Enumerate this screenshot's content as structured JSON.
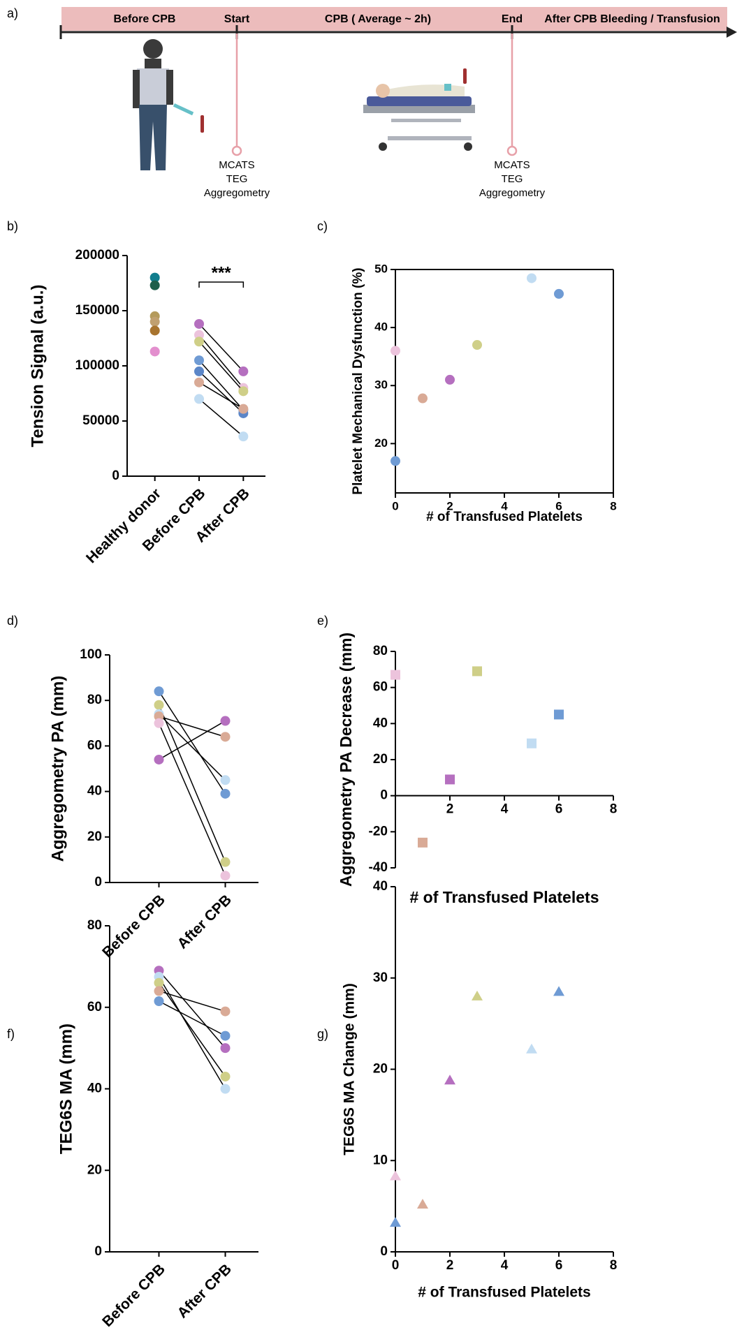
{
  "timeline": {
    "label": "a)",
    "segments": [
      "Before CPB",
      "CPB ( Average ~ 2h)",
      "After CPB Bleeding / Transfusion"
    ],
    "markers": [
      {
        "label": "Start",
        "measures": [
          "MCATS",
          "TEG",
          "Aggregometry"
        ]
      },
      {
        "label": "End",
        "measures": [
          "MCATS",
          "TEG",
          "Aggregometry"
        ]
      }
    ]
  },
  "chart_data": [
    {
      "type": "line",
      "label": "b)",
      "y_label": "Tension Signal (a.u.)",
      "annotation": "***",
      "categories": [
        "Healthy donor",
        "Before CPB",
        "After CPB"
      ],
      "ylim": [
        0,
        200000
      ],
      "yticks": [
        0,
        50000,
        100000,
        150000,
        200000
      ],
      "marker": "circle",
      "series": [
        {
          "color": "#117d8d",
          "values": [
            180000,
            null,
            null
          ]
        },
        {
          "color": "#1e5e4a",
          "values": [
            173000,
            null,
            null
          ]
        },
        {
          "color": "#b49a5b",
          "values": [
            145000,
            null,
            null
          ]
        },
        {
          "color": "#c0a070",
          "values": [
            140000,
            null,
            null
          ]
        },
        {
          "color": "#a8742e",
          "values": [
            132000,
            null,
            null
          ]
        },
        {
          "color": "#e38fce",
          "values": [
            113000,
            null,
            null
          ]
        },
        {
          "color": "#b56fbf",
          "values": [
            null,
            138000,
            95000
          ]
        },
        {
          "color": "#ecc3dc",
          "values": [
            null,
            128000,
            80000
          ]
        },
        {
          "color": "#cfcf88",
          "values": [
            null,
            122000,
            77000
          ]
        },
        {
          "color": "#6f9bd4",
          "values": [
            null,
            105000,
            60000
          ]
        },
        {
          "color": "#5b86c8",
          "values": [
            null,
            95000,
            57000
          ]
        },
        {
          "color": "#d9aa96",
          "values": [
            null,
            85000,
            61000
          ]
        },
        {
          "color": "#c1dcf2",
          "values": [
            null,
            70000,
            36000
          ]
        }
      ]
    },
    {
      "type": "scatter",
      "label": "c)",
      "y_label": "Platelet Mechanical Dysfunction (%)",
      "x_label": "# of Transfused Platelets",
      "x": [
        0,
        0,
        1,
        2,
        3,
        5,
        6
      ],
      "values": [
        36,
        17,
        27.8,
        31,
        37,
        48.5,
        45.8
      ],
      "colors": [
        "#ecc3dc",
        "#6f9bd4",
        "#d9aa96",
        "#b56fbf",
        "#cfcf88",
        "#c1dcf2",
        "#6f9bd4"
      ],
      "marker": "circle",
      "frame": true,
      "xlim": [
        0,
        8
      ],
      "xticks": [
        0,
        2,
        4,
        6,
        8
      ],
      "ylim": [
        11.5,
        50
      ],
      "yticks": [
        20,
        30,
        40,
        50
      ]
    },
    {
      "type": "line",
      "label": "d)",
      "y_label": "Aggregometry PA (mm)",
      "categories": [
        "Before CPB",
        "After CPB"
      ],
      "ylim": [
        0,
        100
      ],
      "yticks": [
        0,
        20,
        40,
        60,
        80,
        100
      ],
      "marker": "circle",
      "series": [
        {
          "color": "#6f9bd4",
          "values": [
            84,
            39
          ]
        },
        {
          "color": "#cfcf88",
          "values": [
            78,
            9
          ]
        },
        {
          "color": "#c1dcf2",
          "values": [
            74,
            45
          ]
        },
        {
          "color": "#d9aa96",
          "values": [
            73,
            64
          ]
        },
        {
          "color": "#ecc3dc",
          "values": [
            70,
            3
          ]
        },
        {
          "color": "#b56fbf",
          "values": [
            54,
            71
          ]
        }
      ]
    },
    {
      "type": "scatter",
      "label": "e)",
      "y_label": "Aggregometry PA Decrease (mm)",
      "x_label": "# of Transfused Platelets",
      "x": [
        0,
        1,
        2,
        3,
        5,
        6
      ],
      "values": [
        67,
        -26,
        9,
        69,
        29,
        45
      ],
      "colors": [
        "#ecc3dc",
        "#d9aa96",
        "#b56fbf",
        "#cfcf88",
        "#c1dcf2",
        "#6f9bd4"
      ],
      "marker": "square",
      "xlim": [
        0,
        8
      ],
      "xticks": [
        2,
        4,
        6,
        8
      ],
      "ylim": [
        -40,
        80
      ],
      "yticks": [
        -40,
        -20,
        0,
        20,
        40,
        60,
        80
      ]
    },
    {
      "type": "line",
      "label": "f)",
      "y_label": "TEG6S MA (mm)",
      "categories": [
        "Before CPB",
        "After CPB"
      ],
      "ylim": [
        0,
        80
      ],
      "yticks": [
        0,
        20,
        40,
        60,
        80
      ],
      "marker": "circle",
      "series": [
        {
          "color": "#b56fbf",
          "values": [
            69,
            50
          ]
        },
        {
          "color": "#c1dcf2",
          "values": [
            67.5,
            40
          ]
        },
        {
          "color": "#cfcf88",
          "values": [
            66,
            43
          ]
        },
        {
          "color": "#d9aa96",
          "values": [
            64,
            59
          ]
        },
        {
          "color": "#6f9bd4",
          "values": [
            61.5,
            53
          ]
        }
      ]
    },
    {
      "type": "scatter",
      "label": "g)",
      "y_label": "TEG6S MA Change (mm)",
      "x_label": "# of Transfused Platelets",
      "x": [
        0,
        0,
        1,
        2,
        3,
        5,
        6
      ],
      "values": [
        8.3,
        3.2,
        5.2,
        18.8,
        28,
        22.2,
        28.5
      ],
      "colors": [
        "#ecc3dc",
        "#6f9bd4",
        "#d9aa96",
        "#b56fbf",
        "#cfcf88",
        "#c1dcf2",
        "#6f9bd4"
      ],
      "marker": "triangle",
      "xlim": [
        0,
        8
      ],
      "xticks": [
        0,
        2,
        4,
        6,
        8
      ],
      "ylim": [
        0,
        40
      ],
      "yticks": [
        0,
        10,
        20,
        30,
        40
      ]
    }
  ]
}
